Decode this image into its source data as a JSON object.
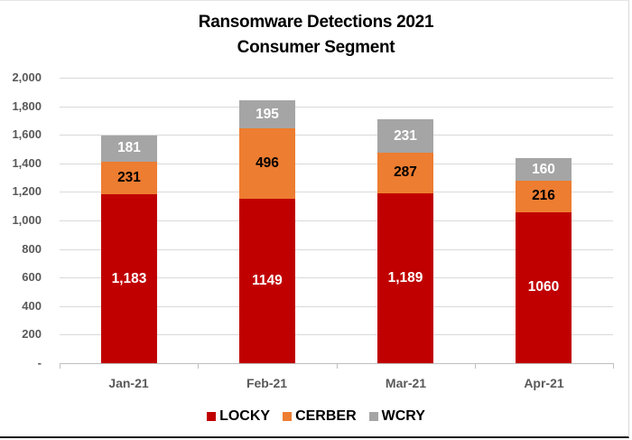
{
  "chart_data": {
    "type": "bar",
    "stacked": true,
    "title": "Ransomware Detections 2021",
    "subtitle": "Consumer Segment",
    "categories": [
      "Jan-21",
      "Feb-21",
      "Mar-21",
      "Apr-21"
    ],
    "series": [
      {
        "name": "LOCKY",
        "color": "#C00000",
        "label_color": "#FFFFFF",
        "values": [
          1183,
          1149,
          1189,
          1060
        ],
        "labels": [
          "1,183",
          "1149",
          "1,189",
          "1060"
        ]
      },
      {
        "name": "CERBER",
        "color": "#ED7D31",
        "label_color": "#000000",
        "values": [
          231,
          496,
          287,
          216
        ],
        "labels": [
          "231",
          "496",
          "287",
          "216"
        ]
      },
      {
        "name": "WCRY",
        "color": "#A5A5A5",
        "label_color": "#FFFFFF",
        "values": [
          181,
          195,
          231,
          160
        ],
        "labels": [
          "181",
          "195",
          "231",
          "160"
        ]
      }
    ],
    "xlabel": "",
    "ylabel": "",
    "ylim": [
      0,
      2000
    ],
    "yticks": [
      0,
      200,
      400,
      600,
      800,
      1000,
      1200,
      1400,
      1600,
      1800,
      2000
    ],
    "ytick_labels": [
      "-",
      "200",
      "400",
      "600",
      "800",
      "1,000",
      "1,200",
      "1,400",
      "1,600",
      "1,800",
      "2,000"
    ],
    "grid": true,
    "legend_position": "bottom"
  }
}
